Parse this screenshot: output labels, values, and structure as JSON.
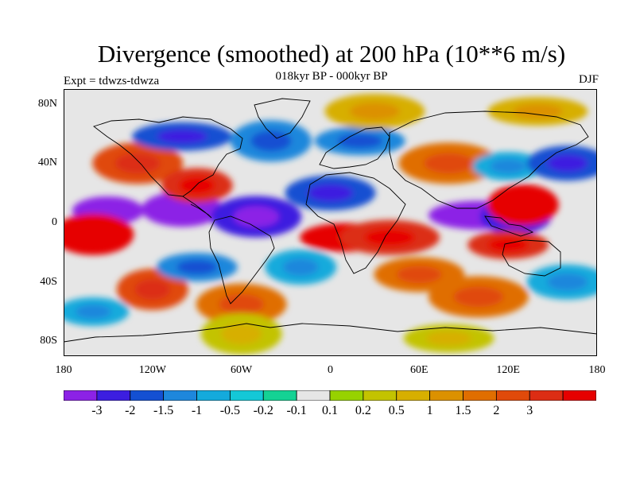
{
  "figure": {
    "title": "Divergence (smoothed) at 200 hPa (10**6 m/s)",
    "subtitle": "018kyr BP - 000kyr BP",
    "expt_label": "Expt = tdwzs-tdwza",
    "season": "DJF"
  },
  "map": {
    "projection": "cylindrical-equidistant",
    "lon_range": [
      -180,
      180
    ],
    "lat_range": [
      -90,
      90
    ],
    "lat_labels": [
      "80N",
      "40N",
      "0",
      "40S",
      "80S"
    ],
    "lon_labels": [
      "180",
      "120W",
      "60W",
      "0",
      "60E",
      "120E",
      "180"
    ],
    "background_color": "#e6e6e6",
    "coastline_color": "#000000",
    "field": "200 hPa divergence anomaly (smoothed)",
    "patterns": [
      {
        "lon": -150,
        "lat": 8,
        "level": 0
      },
      {
        "lon": -100,
        "lat": 9,
        "level": 0
      },
      {
        "lon": -50,
        "lat": 4,
        "level": 1
      },
      {
        "lon": 100,
        "lat": 5,
        "level": 0
      },
      {
        "lon": 125,
        "lat": 4,
        "level": 1
      },
      {
        "lon": -160,
        "lat": -8,
        "level": 15
      },
      {
        "lon": 10,
        "lat": -10,
        "level": 15
      },
      {
        "lon": 40,
        "lat": -10,
        "level": 14
      },
      {
        "lon": 130,
        "lat": 12,
        "level": 15
      },
      {
        "lon": 120,
        "lat": -15,
        "level": 14
      },
      {
        "lon": 0,
        "lat": 20,
        "level": 2
      },
      {
        "lon": 80,
        "lat": 40,
        "level": 12
      },
      {
        "lon": 120,
        "lat": 38,
        "level": 4
      },
      {
        "lon": 160,
        "lat": 40,
        "level": 2
      },
      {
        "lon": -130,
        "lat": 40,
        "level": 13
      },
      {
        "lon": -100,
        "lat": 58,
        "level": 2
      },
      {
        "lon": -90,
        "lat": 25,
        "level": 14
      },
      {
        "lon": -40,
        "lat": 55,
        "level": 3
      },
      {
        "lon": 20,
        "lat": 55,
        "level": 3
      },
      {
        "lon": 30,
        "lat": 75,
        "level": 10
      },
      {
        "lon": -120,
        "lat": -45,
        "level": 13
      },
      {
        "lon": -90,
        "lat": -30,
        "level": 3
      },
      {
        "lon": 60,
        "lat": -35,
        "level": 12
      },
      {
        "lon": 100,
        "lat": -50,
        "level": 12
      },
      {
        "lon": -160,
        "lat": -60,
        "level": 4
      },
      {
        "lon": 160,
        "lat": -40,
        "level": 4
      },
      {
        "lon": -60,
        "lat": -55,
        "level": 12
      },
      {
        "lon": 140,
        "lat": 75,
        "level": 10
      },
      {
        "lon": -20,
        "lat": -30,
        "level": 4
      },
      {
        "lon": -60,
        "lat": -75,
        "level": 9
      },
      {
        "lon": 80,
        "lat": -78,
        "level": 9
      }
    ]
  },
  "colorbar": {
    "tick_labels": [
      "-3",
      "-2",
      "-1.5",
      "-1",
      "-0.5",
      "-0.2",
      "-0.1",
      "0.1",
      "0.2",
      "0.5",
      "1",
      "1.5",
      "2",
      "3"
    ],
    "colors": [
      "#8c22e6",
      "#3c1ee0",
      "#1450d2",
      "#1e87dc",
      "#14aadc",
      "#14c8d7",
      "#14d294",
      "#e6e6e6",
      "#97d200",
      "#c3c300",
      "#d7af00",
      "#dc9100",
      "#e06e00",
      "#e04a0a",
      "#dc2d14",
      "#e60000"
    ]
  }
}
